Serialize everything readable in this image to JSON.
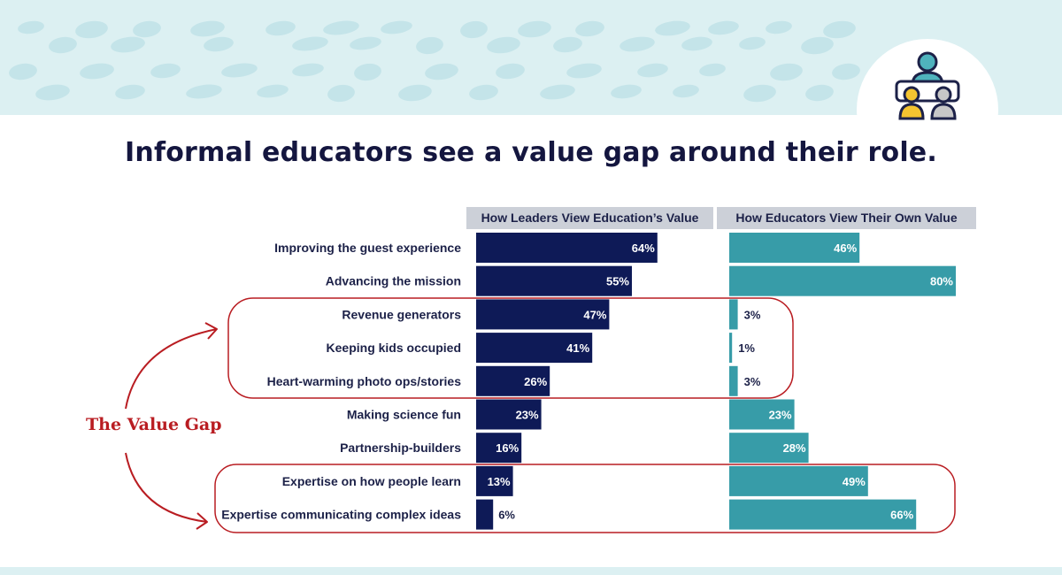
{
  "title": "Informal educators see a value gap around their role.",
  "colors": {
    "leaders_bar": "#0e1a57",
    "educators_bar": "#379ca8",
    "highlight": "#b91d22",
    "header_bg": "#ccd0d8",
    "banner_bg": "#dcf0f2"
  },
  "icon": "people-at-table-icon",
  "annotation": "The Value Gap",
  "chart_data": {
    "type": "bar",
    "orientation": "horizontal",
    "value_format": "percent",
    "categories": [
      "Improving the guest experience",
      "Advancing the mission",
      "Revenue generators",
      "Keeping kids occupied",
      "Heart-warming photo ops/stories",
      "Making science fun",
      "Partnership-builders",
      "Expertise on how people learn",
      "Expertise communicating complex ideas"
    ],
    "series": [
      {
        "name": "How Leaders View Education’s Value",
        "values": [
          64,
          55,
          47,
          41,
          26,
          23,
          16,
          13,
          6
        ]
      },
      {
        "name": "How Educators View Their Own Value",
        "values": [
          46,
          80,
          3,
          1,
          3,
          23,
          28,
          49,
          66
        ]
      }
    ],
    "xlim": [
      0,
      100
    ],
    "grid": false,
    "highlight_groups": [
      [
        "Revenue generators",
        "Keeping kids occupied",
        "Heart-warming photo ops/stories"
      ],
      [
        "Expertise on how people learn",
        "Expertise communicating complex ideas"
      ]
    ]
  }
}
